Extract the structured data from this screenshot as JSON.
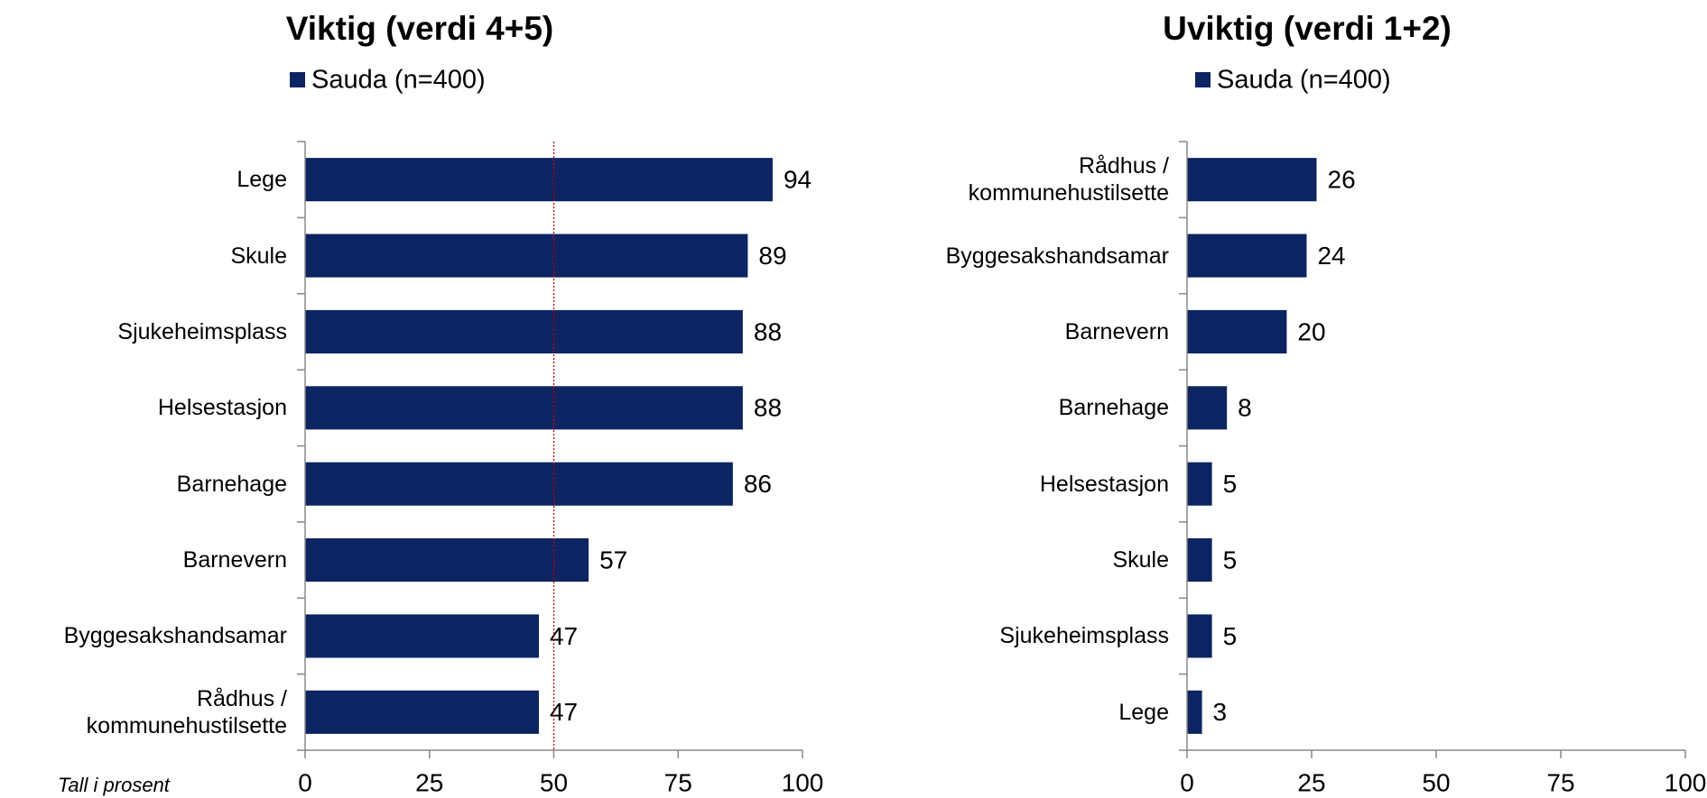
{
  "chart_data": [
    {
      "type": "barh",
      "title": "Viktig (verdi 4+5)",
      "categories": [
        "Lege",
        "Skule",
        "Sjukeheimsplass",
        "Helsestasjon",
        "Barnehage",
        "Barnevern",
        "Byggesakshandsamar",
        "Rådhus /\nkommunehustilsette"
      ],
      "series": [
        {
          "name": "Sauda (n=400)",
          "color": "#0c2461",
          "values": [
            94,
            89,
            88,
            88,
            86,
            57,
            47,
            47
          ]
        }
      ],
      "xlim": [
        0,
        100
      ],
      "xticks": [
        0,
        25,
        50,
        75,
        100
      ],
      "reference_line": {
        "value": 50,
        "color": "#c00000"
      },
      "annotation": "Tall i prosent"
    },
    {
      "type": "barh",
      "title": "Uviktig (verdi 1+2)",
      "categories": [
        "Rådhus /\nkommunehustilsette",
        "Byggesakshandsamar",
        "Barnevern",
        "Barnehage",
        "Helsestasjon",
        "Skule",
        "Sjukeheimsplass",
        "Lege"
      ],
      "series": [
        {
          "name": "Sauda (n=400)",
          "color": "#0c2461",
          "values": [
            26,
            24,
            20,
            8,
            5,
            5,
            5,
            3
          ]
        }
      ],
      "xlim": [
        0,
        100
      ],
      "xticks": [
        0,
        25,
        50,
        75,
        100
      ]
    }
  ]
}
